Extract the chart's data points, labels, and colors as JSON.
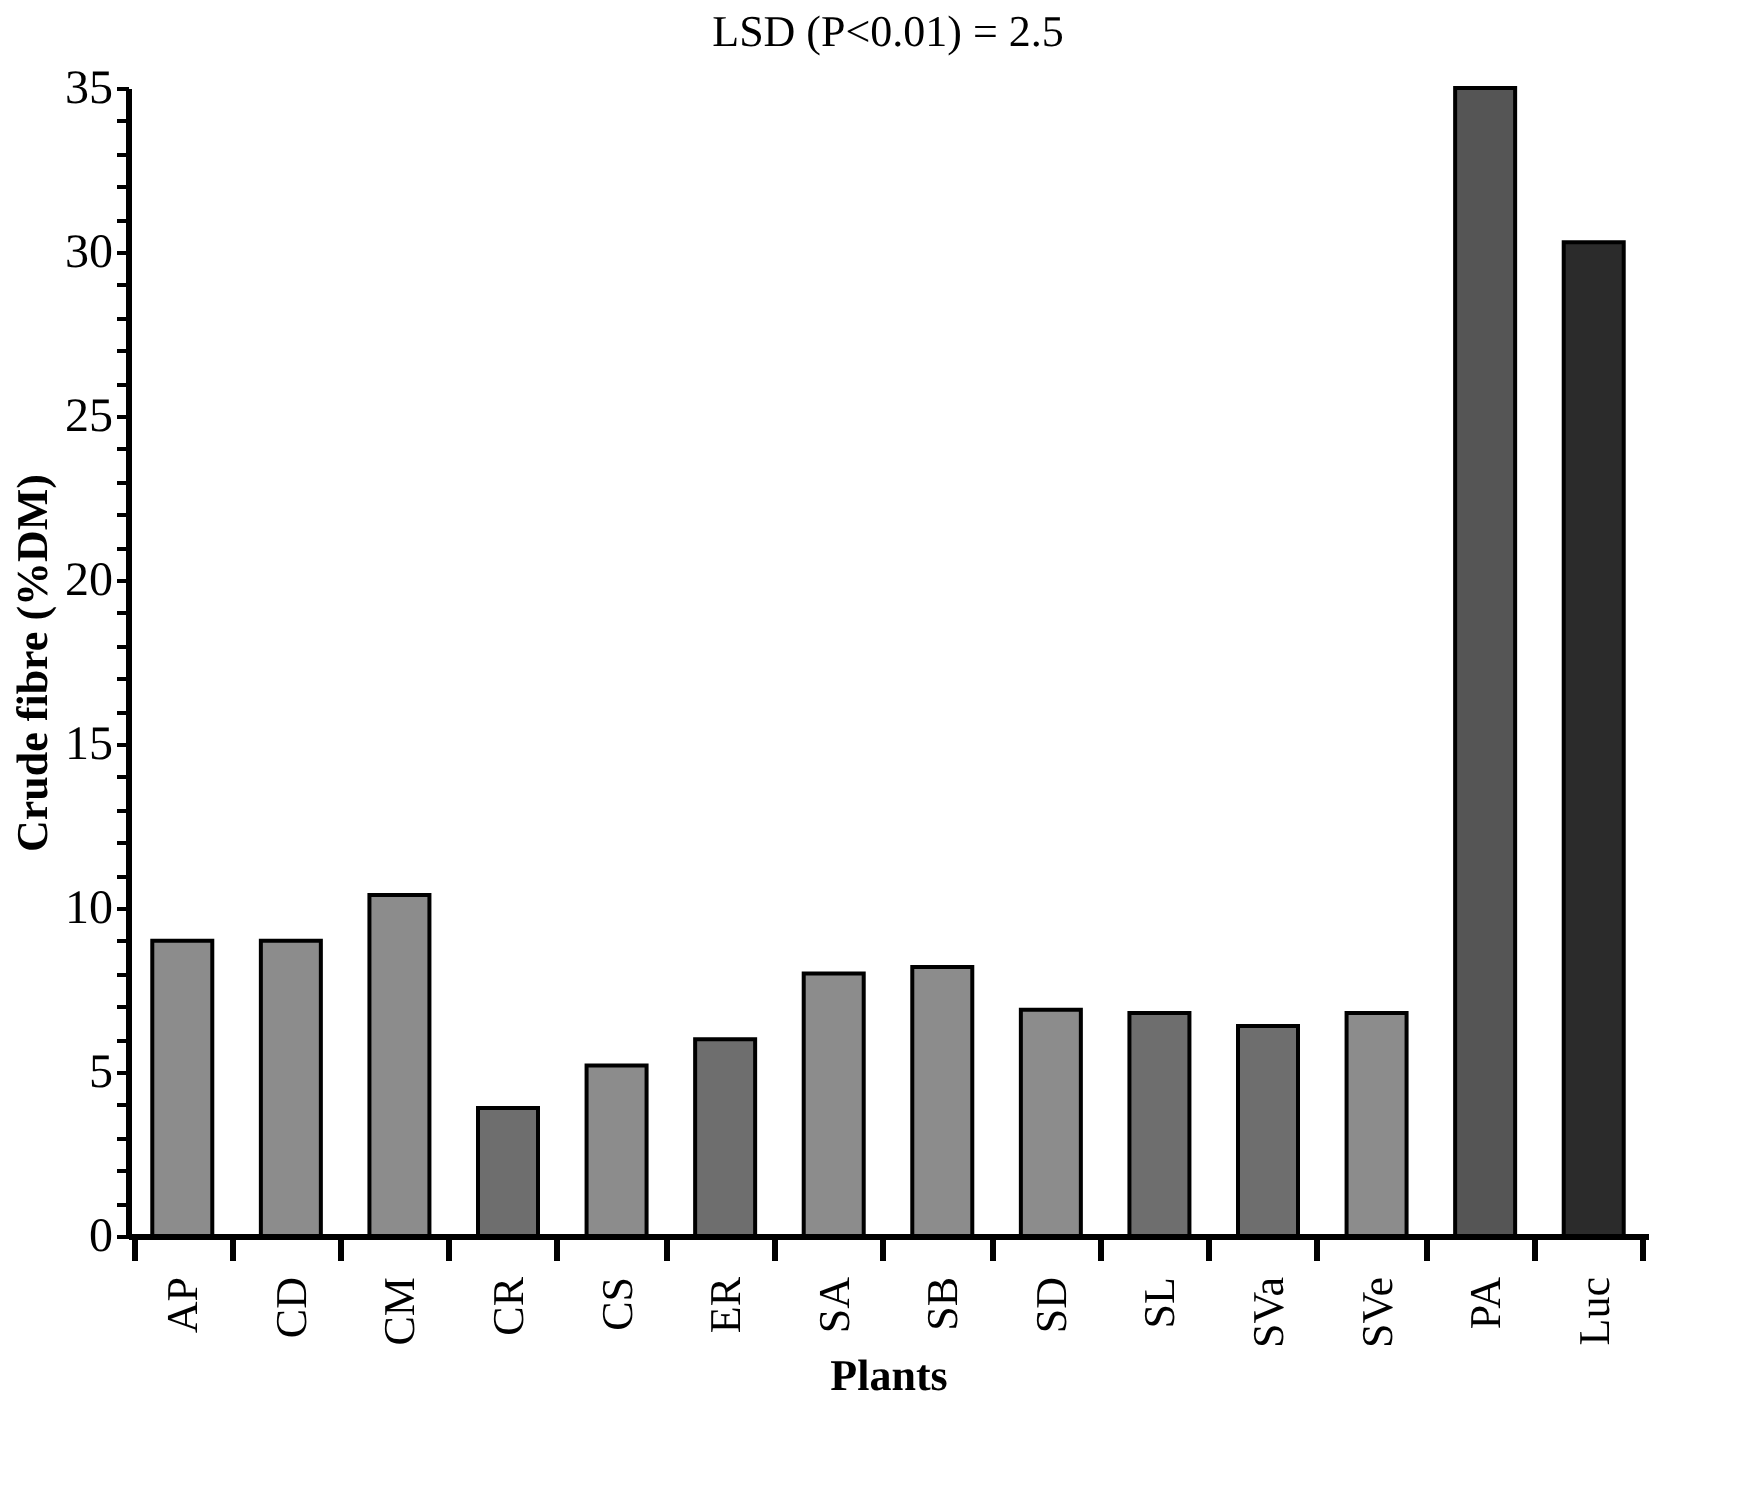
{
  "chart_data": {
    "type": "bar",
    "title": "LSD (P<0.01) = 2.5",
    "xlabel": "Plants",
    "ylabel": "Crude fibre (%DM)",
    "categories": [
      "AP",
      "CD",
      "CM",
      "CR",
      "CS",
      "ER",
      "SA",
      "SB",
      "SD",
      "SL",
      "SVa",
      "SVe",
      "PA",
      "Luc"
    ],
    "values": [
      9.0,
      9.0,
      10.4,
      3.9,
      5.2,
      6.0,
      8.0,
      8.2,
      6.9,
      6.8,
      6.4,
      6.8,
      35.0,
      30.3
    ],
    "colors": [
      "#8c8c8c",
      "#8c8c8c",
      "#8c8c8c",
      "#6e6e6e",
      "#8c8c8c",
      "#6e6e6e",
      "#8c8c8c",
      "#8c8c8c",
      "#8c8c8c",
      "#6e6e6e",
      "#6e6e6e",
      "#8c8c8c",
      "#555555",
      "#2b2b2b"
    ],
    "ylim": [
      0,
      35
    ],
    "yticks": [
      0,
      {
        "value": 1,
        "label": null
      },
      {
        "value": 2,
        "label": null
      },
      {
        "value": 3,
        "label": null
      },
      {
        "value": 4,
        "label": null
      },
      5,
      {
        "value": 6,
        "label": null
      },
      {
        "value": 7,
        "label": null
      },
      {
        "value": 8,
        "label": null
      },
      {
        "value": 9,
        "label": null
      },
      10,
      {
        "value": 11,
        "label": null
      },
      {
        "value": 12,
        "label": null
      },
      {
        "value": 13,
        "label": null
      },
      {
        "value": 14,
        "label": null
      },
      15,
      {
        "value": 16,
        "label": null
      },
      {
        "value": 17,
        "label": null
      },
      {
        "value": 18,
        "label": null
      },
      {
        "value": 19,
        "label": null
      },
      20,
      {
        "value": 21,
        "label": null
      },
      {
        "value": 22,
        "label": null
      },
      {
        "value": 23,
        "label": null
      },
      {
        "value": 24,
        "label": null
      },
      25,
      {
        "value": 26,
        "label": null
      },
      {
        "value": 27,
        "label": null
      },
      {
        "value": 28,
        "label": null
      },
      {
        "value": 29,
        "label": null
      },
      30,
      {
        "value": 31,
        "label": null
      },
      {
        "value": 32,
        "label": null
      },
      {
        "value": 33,
        "label": null
      },
      {
        "value": 34,
        "label": null
      },
      35
    ],
    "grid": false,
    "legend": false
  }
}
